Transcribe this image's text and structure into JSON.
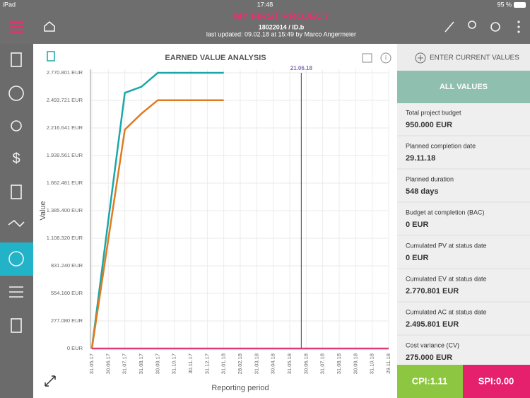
{
  "status_bar": {
    "device": "iPad",
    "time": "17:48",
    "battery": "95 %"
  },
  "header": {
    "title": "MY FIRST PROJECT",
    "project_id": "18022014 / ID.b",
    "last_updated": "last updated: 09.02.18 at 15:49 by Marco Angermeier"
  },
  "chart_data": {
    "type": "line",
    "title": "EARNED VALUE ANALYSIS",
    "y_label": "Value",
    "x_label": "Reporting period",
    "annotation": "21.06.18",
    "categories": [
      "31.05.17",
      "30.06.17",
      "31.07.17",
      "31.08.17",
      "30.09.17",
      "31.10.17",
      "30.11.17",
      "31.12.17",
      "31.01.18",
      "28.02.18",
      "31.03.18",
      "30.04.18",
      "31.05.18",
      "30.06.18",
      "31.07.18",
      "31.08.18",
      "30.09.18",
      "31.10.18",
      "29.11.18"
    ],
    "series": [
      {
        "color": "#1aa7a9",
        "values": [
          0,
          1290000,
          2570000,
          2630000,
          2770801,
          2770801,
          2770801,
          2770801,
          2770801,
          null,
          null,
          null,
          null,
          null,
          null,
          null,
          null,
          null,
          null
        ]
      },
      {
        "color": "#e07b1f",
        "values": [
          0,
          1100000,
          2200000,
          2360000,
          2495801,
          2495801,
          2495801,
          2495801,
          2495801,
          null,
          null,
          null,
          null,
          null,
          null,
          null,
          null,
          null,
          null
        ]
      },
      {
        "color": "#dd3a78",
        "values": [
          0,
          0,
          0,
          0,
          0,
          0,
          0,
          0,
          0,
          0,
          0,
          0,
          0,
          0,
          0,
          0,
          0,
          0,
          0
        ]
      }
    ],
    "ylim": [
      0,
      2770801
    ],
    "yticks": [
      {
        "value": 0,
        "label": "0 EUR"
      },
      {
        "value": 277080,
        "label": "277.080 EUR"
      },
      {
        "value": 554160,
        "label": "554.160 EUR"
      },
      {
        "value": 831240,
        "label": "831.240 EUR"
      },
      {
        "value": 1108320,
        "label": "1.108.320 EUR"
      },
      {
        "value": 1385400,
        "label": "1.385.400 EUR"
      },
      {
        "value": 1662481,
        "label": "1.662.481 EUR"
      },
      {
        "value": 1939561,
        "label": "1.939.561 EUR"
      },
      {
        "value": 2216641,
        "label": "2.216.641 EUR"
      },
      {
        "value": 2493721,
        "label": "2.493.721 EUR"
      },
      {
        "value": 2770801,
        "label": "2.770.801 EUR"
      }
    ],
    "grid": true
  },
  "side_panel": {
    "action": "ENTER CURRENT VALUES",
    "tab": "ALL VALUES",
    "items": [
      {
        "label": "Total project budget",
        "value": "950.000 EUR"
      },
      {
        "label": "Planned completion date",
        "value": "29.11.18"
      },
      {
        "label": "Planned duration",
        "value": "548 days"
      },
      {
        "label": "Budget at completion (BAC)",
        "value": "0 EUR"
      },
      {
        "label": "Cumulated PV at status date",
        "value": "0 EUR"
      },
      {
        "label": "Cumulated EV at status date",
        "value": "2.770.801 EUR"
      },
      {
        "label": "Cumulated AC at status date",
        "value": "2.495.801 EUR"
      },
      {
        "label": "Cost variance (CV)",
        "value": "275.000 EUR"
      }
    ]
  },
  "footer": {
    "cpi": "CPI:1.11",
    "spi": "SPI:0.00"
  }
}
